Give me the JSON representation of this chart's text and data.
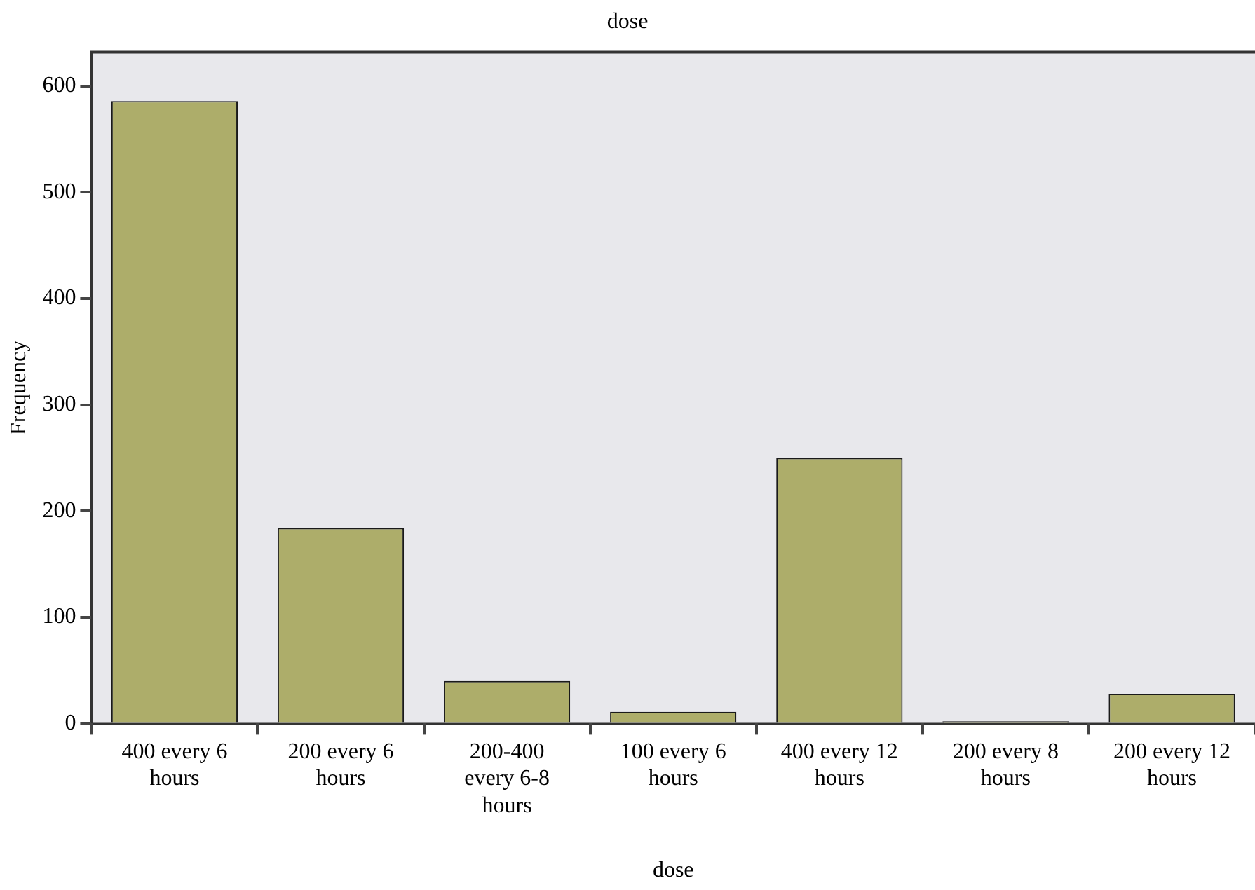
{
  "chart_data": {
    "type": "bar",
    "title": "dose",
    "xlabel": "dose",
    "ylabel": "Frequency",
    "categories": [
      "400 every 6 hours",
      "200 every 6 hours",
      "200-400 every 6-8 hours",
      "100 every 6 hours",
      "400 every 12 hours",
      "200 every 8 hours",
      "200 every 12 hours"
    ],
    "values": [
      586,
      184,
      40,
      11,
      250,
      2,
      28
    ],
    "color": "#adad6a",
    "ylim": [
      0,
      632
    ],
    "yticks": [
      0,
      100,
      200,
      300,
      400,
      500,
      600
    ],
    "grid": false,
    "legend": false
  }
}
